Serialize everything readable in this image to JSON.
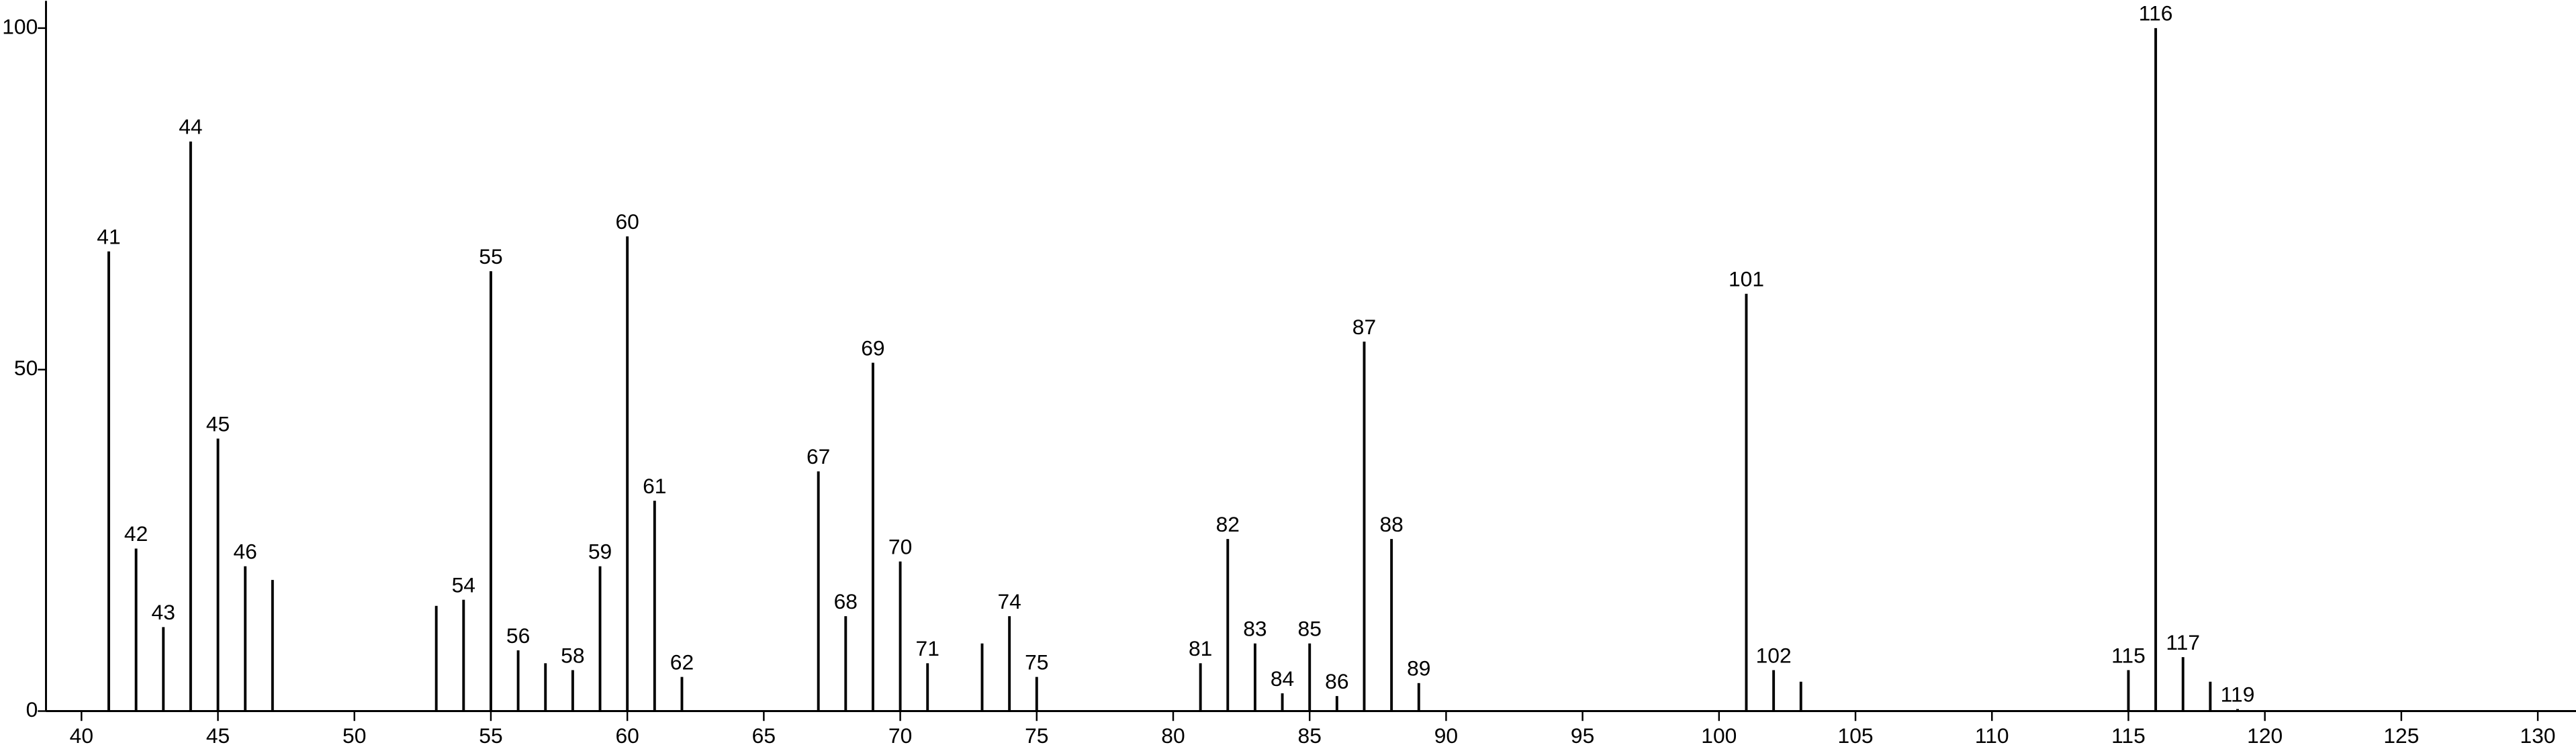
{
  "chart_data": {
    "type": "stick",
    "x": [
      41,
      42,
      43,
      44,
      45,
      46,
      47,
      53,
      54,
      55,
      56,
      57,
      58,
      59,
      60,
      61,
      62,
      67,
      68,
      69,
      70,
      71,
      73,
      74,
      75,
      81,
      82,
      83,
      84,
      85,
      86,
      87,
      88,
      89,
      101,
      102,
      103,
      115,
      116,
      117,
      118,
      119
    ],
    "values": [
      67.3,
      23.8,
      12.3,
      83.4,
      39.9,
      21.2,
      19.2,
      15.4,
      16.3,
      64.4,
      8.9,
      7.0,
      6.0,
      21.2,
      69.5,
      30.8,
      5.0,
      35.1,
      13.9,
      51.0,
      21.9,
      7.0,
      9.9,
      13.9,
      5.0,
      7.0,
      25.2,
      9.9,
      2.6,
      9.9,
      2.2,
      54.1,
      25.2,
      4.1,
      61.1,
      6.0,
      4.3,
      6.0,
      100,
      7.9,
      4.3,
      0.3
    ],
    "labels": [
      41,
      42,
      43,
      44,
      45,
      46,
      null,
      null,
      54,
      55,
      56,
      null,
      58,
      59,
      60,
      61,
      62,
      67,
      68,
      69,
      70,
      71,
      null,
      74,
      75,
      81,
      82,
      83,
      84,
      85,
      86,
      87,
      88,
      89,
      101,
      102,
      null,
      115,
      116,
      117,
      null,
      119
    ],
    "color": "#000000",
    "xlim": [
      38.7,
      131.4
    ],
    "xticks": [
      40,
      45,
      50,
      55,
      60,
      65,
      70,
      75,
      80,
      85,
      90,
      95,
      100,
      105,
      110,
      115,
      120,
      125,
      130
    ],
    "ylim": [
      0,
      104
    ],
    "yticks": [
      0,
      50,
      100
    ]
  }
}
